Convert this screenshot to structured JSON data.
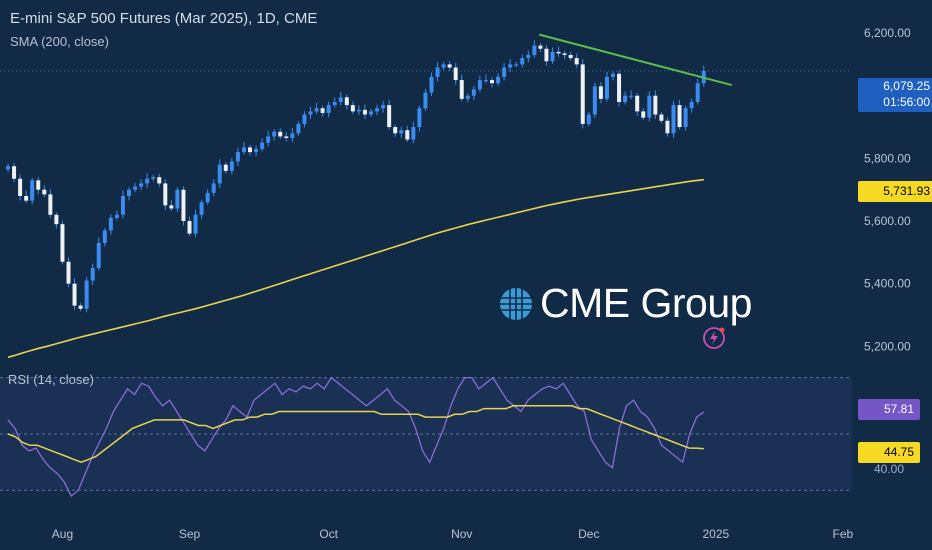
{
  "header": {
    "title": "E-mini S&P 500 Futures (Mar 2025), 1D, CME",
    "sma_label": "SMA (200, close)",
    "rsi_label": "RSI (14, close)"
  },
  "logo": {
    "text": "CME Group"
  },
  "price_tags": {
    "last_price": "6,079.25",
    "countdown": "01:56:00",
    "sma_value": "5,731.93",
    "rsi_value": "57.81",
    "rsi_ma_value": "44.75",
    "rsi_partial_label": "40.00"
  },
  "colors": {
    "background": "#112a46",
    "candle": "#3b8cf0",
    "sma": "#e8d44d",
    "trendline": "#5bbf4a",
    "rsi": "#8c6ad8",
    "rsi_ma": "#e8d44d",
    "rsi_band": "#1c3358"
  },
  "chart_data": [
    {
      "type": "candlestick",
      "title": "E-mini S&P 500 Futures (Mar 2025), 1D, CME",
      "ylim": [
        5150,
        6280
      ],
      "y_ticks": [
        "6,200.00",
        "5,800.00",
        "5,600.00",
        "5,400.00",
        "5,200.00"
      ],
      "y_tick_values": [
        6200,
        5800,
        5600,
        5400,
        5200
      ],
      "x_ticks": [
        "Aug",
        "Sep",
        "Oct",
        "Nov",
        "Dec",
        "2025",
        "Feb"
      ],
      "x_tick_index": [
        9,
        30,
        53,
        75,
        96,
        117,
        138
      ],
      "close": [
        5775,
        5735,
        5680,
        5665,
        5730,
        5700,
        5685,
        5620,
        5590,
        5470,
        5400,
        5330,
        5320,
        5410,
        5450,
        5530,
        5570,
        5610,
        5620,
        5680,
        5700,
        5710,
        5720,
        5735,
        5740,
        5720,
        5650,
        5640,
        5700,
        5600,
        5560,
        5620,
        5660,
        5690,
        5720,
        5780,
        5760,
        5790,
        5820,
        5835,
        5820,
        5830,
        5850,
        5870,
        5885,
        5870,
        5865,
        5880,
        5910,
        5940,
        5950,
        5960,
        5945,
        5970,
        5980,
        5995,
        5970,
        5950,
        5955,
        5940,
        5950,
        5960,
        5970,
        5900,
        5880,
        5890,
        5860,
        5900,
        5960,
        6010,
        6060,
        6090,
        6100,
        6090,
        6050,
        5990,
        6000,
        6020,
        6050,
        6050,
        6040,
        6060,
        6090,
        6100,
        6100,
        6120,
        6130,
        6160,
        6150,
        6110,
        6140,
        6135,
        6130,
        6120,
        6100,
        5910,
        5940,
        6030,
        5990,
        6060,
        6070,
        5980,
        6000,
        6000,
        5950,
        5930,
        6000,
        5940,
        5920,
        5880,
        5970,
        5900,
        5960,
        5980,
        6040,
        6079
      ],
      "sma200": [
        5165,
        5172,
        5180,
        5187,
        5194,
        5200,
        5207,
        5214,
        5221,
        5228,
        5234,
        5240,
        5246,
        5252,
        5258,
        5264,
        5270,
        5276,
        5282,
        5289,
        5296,
        5302,
        5308,
        5314,
        5320,
        5327,
        5334,
        5341,
        5348,
        5355,
        5362,
        5370,
        5378,
        5386,
        5394,
        5402,
        5410,
        5418,
        5426,
        5434,
        5442,
        5450,
        5458,
        5466,
        5474,
        5482,
        5490,
        5498,
        5506,
        5514,
        5522,
        5530,
        5538,
        5546,
        5554,
        5562,
        5569,
        5576,
        5583,
        5590,
        5596,
        5602,
        5608,
        5614,
        5620,
        5626,
        5632,
        5638,
        5644,
        5650,
        5655,
        5660,
        5665,
        5670,
        5674,
        5678,
        5682,
        5686,
        5690,
        5694,
        5698,
        5702,
        5706,
        5710,
        5714,
        5718,
        5722,
        5726,
        5729,
        5732
      ],
      "sma_value": 5731.93,
      "trendline": {
        "from": [
          84,
          6195
        ],
        "to": [
          110,
          6050
        ]
      }
    },
    {
      "type": "line",
      "title": "RSI (14, close)",
      "ylim": [
        28,
        72
      ],
      "series": [
        {
          "values": [
            55,
            52,
            46,
            44,
            45,
            41,
            38,
            36,
            33,
            28,
            30,
            36,
            42,
            47,
            52,
            58,
            62,
            66,
            64,
            68,
            67,
            63,
            60,
            62,
            58,
            54,
            50,
            46,
            44,
            48,
            52,
            55,
            60,
            58,
            56,
            62,
            64,
            66,
            68,
            64,
            66,
            65,
            67,
            66,
            68,
            66,
            70,
            68,
            66,
            64,
            62,
            60,
            62,
            64,
            66,
            62,
            60,
            58,
            52,
            44,
            40,
            46,
            52,
            60,
            66,
            70,
            70,
            66,
            68,
            70,
            66,
            62,
            60,
            58,
            62,
            64,
            66,
            67,
            66,
            68,
            64,
            60,
            58,
            48,
            44,
            40,
            38,
            52,
            60,
            62,
            58,
            56,
            52,
            46,
            44,
            42,
            40,
            50,
            56,
            57.81
          ]
        },
        {
          "values": [
            50,
            49,
            47,
            46,
            46,
            45,
            44,
            43,
            42,
            41,
            40,
            41,
            42,
            44,
            46,
            48,
            50,
            52,
            53,
            54,
            55,
            55,
            55,
            55,
            55,
            54,
            53,
            53,
            52,
            53,
            54,
            55,
            55,
            56,
            56,
            57,
            57,
            58,
            58,
            58,
            58,
            58,
            58,
            58,
            58,
            58,
            58,
            58,
            58,
            58,
            58,
            57,
            57,
            57,
            57,
            57,
            57,
            56,
            56,
            56,
            56,
            57,
            57,
            58,
            58,
            59,
            59,
            59,
            59,
            60,
            60,
            60,
            60,
            60,
            60,
            60,
            60,
            60,
            59,
            59,
            58,
            57,
            56,
            55,
            54,
            53,
            52,
            51,
            50,
            49,
            48,
            47,
            46,
            45,
            45,
            44.75
          ]
        }
      ],
      "rsi_value": 57.81,
      "rsi_ma_value": 44.75
    }
  ]
}
